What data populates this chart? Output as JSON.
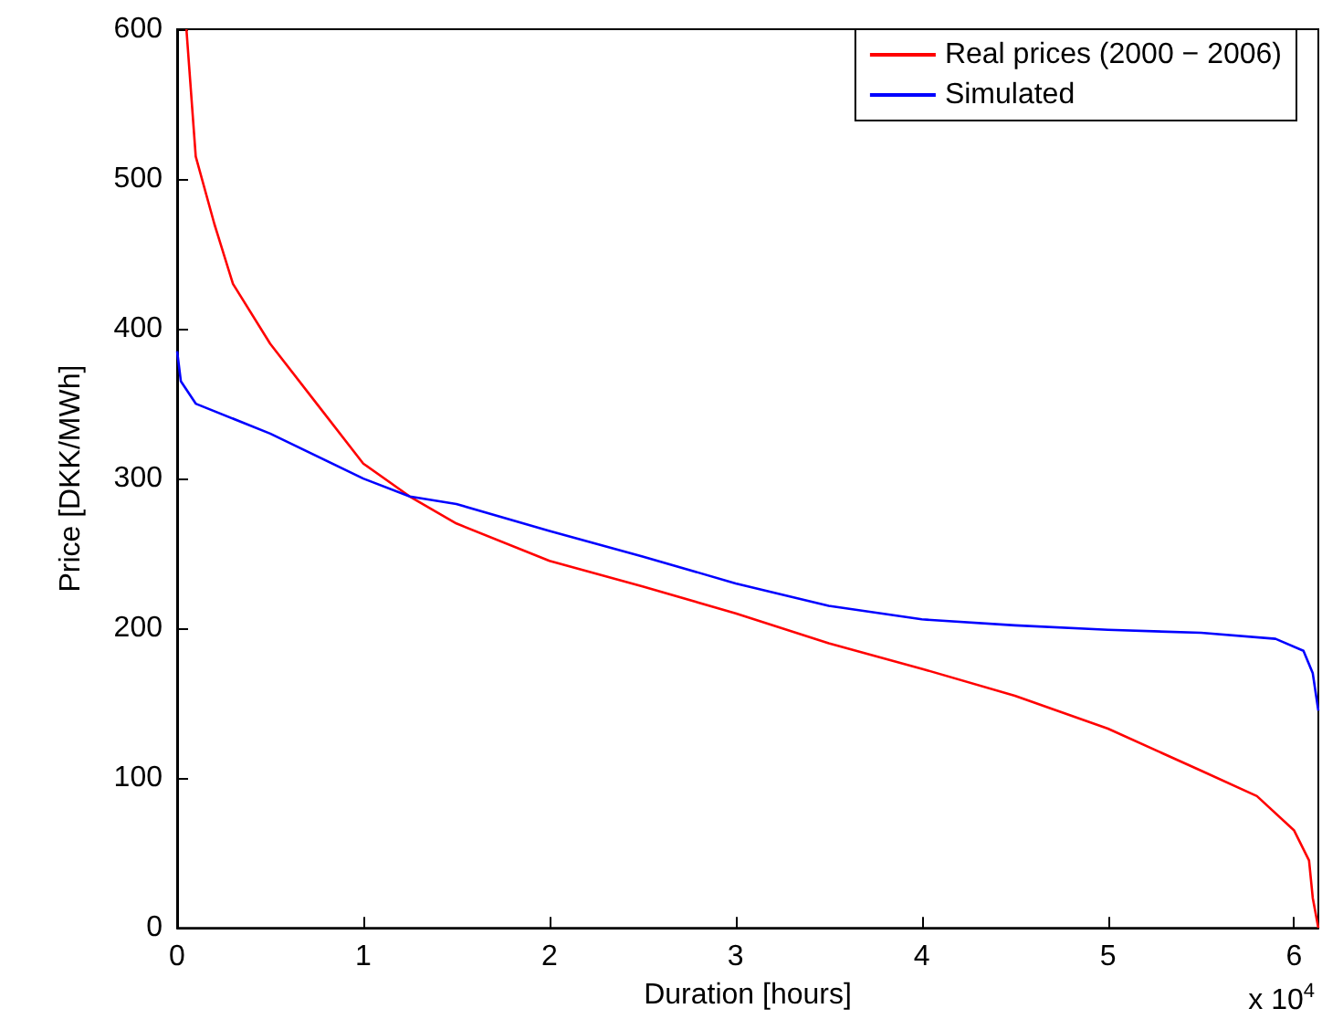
{
  "chart_data": {
    "type": "line",
    "xlabel": "Duration [hours]",
    "ylabel": "Price [DKK/MWh]",
    "xlim": [
      0,
      6.13
    ],
    "ylim": [
      0,
      600
    ],
    "xticks": [
      0,
      1,
      2,
      3,
      4,
      5,
      6
    ],
    "yticks": [
      0,
      100,
      200,
      300,
      400,
      500,
      600
    ],
    "annotations": [
      "x 10$^{4}$"
    ],
    "legend": "top right",
    "grid": false,
    "marker": "none",
    "line_style": "solid",
    "series": [
      {
        "name": "Real prices (2000 − 2006)",
        "color": "#ff0000",
        "x": [
          0.05,
          0.1,
          0.2,
          0.3,
          0.5,
          0.75,
          1.0,
          1.25,
          1.5,
          2.0,
          2.5,
          3.0,
          3.5,
          4.0,
          4.5,
          5.0,
          5.5,
          5.8,
          6.0,
          6.08,
          6.1,
          6.13
        ],
        "values": [
          600,
          515,
          470,
          430,
          390,
          350,
          310,
          288,
          270,
          245,
          228,
          210,
          190,
          173,
          155,
          133,
          105,
          88,
          65,
          45,
          20,
          0
        ]
      },
      {
        "name": "Simulated",
        "color": "#0000ff",
        "x": [
          0,
          0.02,
          0.1,
          0.5,
          1.0,
          1.25,
          1.5,
          2.0,
          2.5,
          3.0,
          3.5,
          4.0,
          4.5,
          5.0,
          5.5,
          5.9,
          6.05,
          6.1,
          6.13
        ],
        "values": [
          385,
          365,
          350,
          330,
          300,
          288,
          283,
          265,
          248,
          230,
          215,
          206,
          202,
          199,
          197,
          193,
          185,
          170,
          145
        ]
      }
    ]
  }
}
